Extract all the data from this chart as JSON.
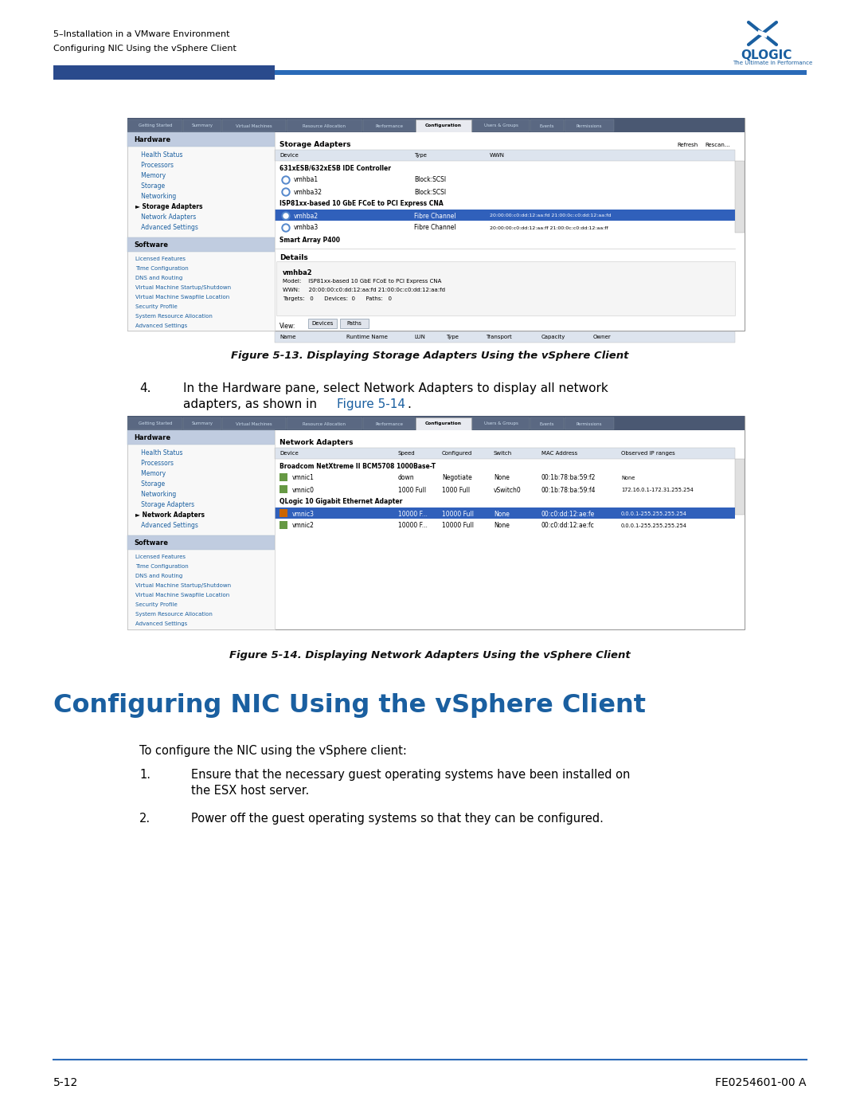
{
  "page_width": 10.8,
  "page_height": 13.97,
  "bg_color": "#ffffff",
  "header_line1": "5–Installation in a VMware Environment",
  "header_line2": "Configuring NIC Using the vSphere Client",
  "header_text_color": "#000000",
  "blue_bar_color": "#2a4a8c",
  "blue_line_color": "#2a6ab8",
  "qlogic_blue": "#1a5fa0",
  "fig13_caption": "Figure 5-13. Displaying Storage Adapters Using the vSphere Client",
  "fig14_caption": "Figure 5-14. Displaying Network Adapters Using the vSphere Client",
  "section_title": "Configuring NIC Using the vSphere Client",
  "section_title_color": "#1a5fa0",
  "intro_text": "To configure the NIC using the vSphere client:",
  "step4_line1": "In the Hardware pane, select Network Adapters to display all network",
  "step4_line2": "adapters, as shown in ",
  "step4_link": "Figure 5-14",
  "step4_period": ".",
  "step1_line1": "Ensure that the necessary guest operating systems have been installed on",
  "step1_line2": "the ESX host server.",
  "step2": "Power off the guest operating systems so that they can be configured.",
  "footer_left": "5-12",
  "footer_right": "FE0254601-00 A",
  "footer_line_color": "#2a6ab8",
  "link_color": "#1a5fa0",
  "tab_bar_color": "#4a5a7a",
  "tabs": [
    "Getting Started",
    "Summary",
    "Virtual Machines",
    "Resource Allocation",
    "Performance",
    "Configuration",
    "Users & Groups",
    "Events",
    "Permissions"
  ],
  "tab_active": "Configuration",
  "hw_header_bg": "#c8d4e8",
  "hw_items_13": [
    "Health Status",
    "Processors",
    "Memory",
    "Storage",
    "Networking",
    "Storage Adapters",
    "Network Adapters",
    "Advanced Settings"
  ],
  "hw_arrow_13": "Storage Adapters",
  "hw_items_14": [
    "Health Status",
    "Processors",
    "Memory",
    "Storage",
    "Networking",
    "Storage Adapters",
    "Network Adapters",
    "Advanced Settings"
  ],
  "hw_arrow_14": "Network Adapters",
  "sw_items": [
    "Licensed Features",
    "Time Configuration",
    "DNS and Routing",
    "Virtual Machine Startup/Shutdown",
    "Virtual Machine Swapfile Location",
    "Security Profile",
    "System Resource Allocation",
    "Advanced Settings"
  ],
  "storage_rows": [
    {
      "name": "631xESB/632xESB IDE Controller",
      "type": "",
      "wwn": "",
      "header": true,
      "selected": false
    },
    {
      "name": "vmhba1",
      "type": "Block:SCSI",
      "wwn": "",
      "header": false,
      "selected": false
    },
    {
      "name": "vmhba32",
      "type": "Block:SCSI",
      "wwn": "",
      "header": false,
      "selected": false
    },
    {
      "name": "ISP81xx-based 10 GbE FCoE to PCI Express CNA",
      "type": "",
      "wwn": "",
      "header": true,
      "selected": false
    },
    {
      "name": "vmhba2",
      "type": "Fibre Channel",
      "wwn": "20:00:00:c0:dd:12:aa:fd 21:00:0c:c0:dd:12:aa:fd",
      "header": false,
      "selected": true
    },
    {
      "name": "vmhba3",
      "type": "Fibre Channel",
      "wwn": "20:00:00:c0:dd:12:aa:ff 21:00:0c:c0:dd:12:aa:ff",
      "header": false,
      "selected": false
    },
    {
      "name": "Smart Array P400",
      "type": "",
      "wwn": "",
      "header": true,
      "selected": false
    }
  ],
  "net_rows": [
    {
      "name": "Broadcom NetXtreme II BCM5708 1000Base-T",
      "speed": "",
      "conf": "",
      "switch": "",
      "mac": "",
      "ip": "",
      "header": true,
      "selected": false
    },
    {
      "name": "vmnic1",
      "speed": "down",
      "conf": "Negotiate",
      "switch": "None",
      "mac": "00:1b:78:ba:59:f2",
      "ip": "None",
      "header": false,
      "selected": false
    },
    {
      "name": "vmnic0",
      "speed": "1000 Full",
      "conf": "1000 Full",
      "switch": "vSwitch0",
      "mac": "00:1b:78:ba:59:f4",
      "ip": "172.16.0.1-172.31.255.254",
      "header": false,
      "selected": false
    },
    {
      "name": "QLogic 10 Gigabit Ethernet Adapter",
      "speed": "",
      "conf": "",
      "switch": "",
      "mac": "",
      "ip": "",
      "header": true,
      "selected": false
    },
    {
      "name": "vmnic3",
      "speed": "10000 F...",
      "conf": "10000 Full",
      "switch": "None",
      "mac": "00:c0:dd:12:ae:fe",
      "ip": "0.0.0.1-255.255.255.254",
      "header": false,
      "selected": true
    },
    {
      "name": "vmnic2",
      "speed": "10000 F...",
      "conf": "10000 Full",
      "switch": "None",
      "mac": "00:c0:dd:12:ae:fc",
      "ip": "0.0.0.1-255.255.255.254",
      "header": false,
      "selected": false
    }
  ]
}
